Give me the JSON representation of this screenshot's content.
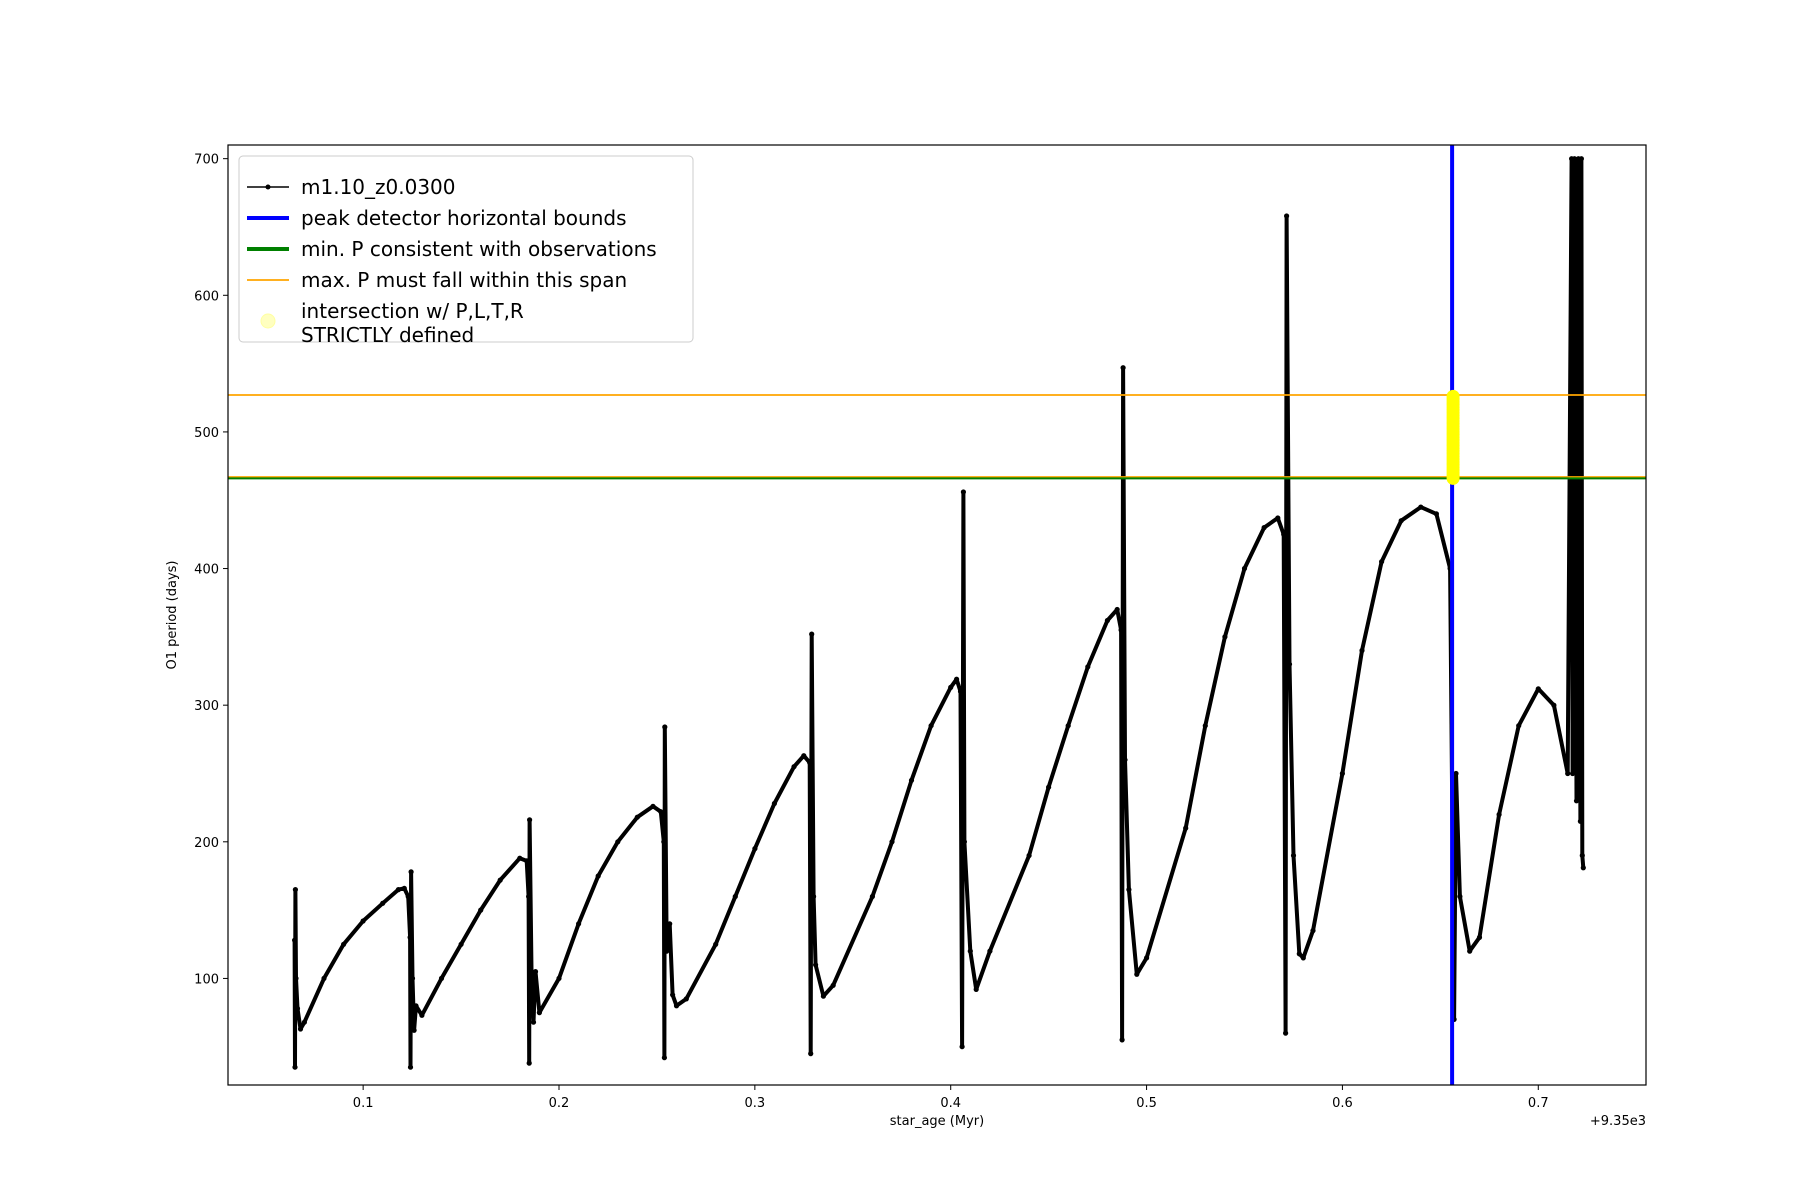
{
  "chart_data": {
    "type": "line",
    "xlabel": "star_age (Myr)",
    "ylabel": "O1 period (days)",
    "x_offset_label": "+9.35e3",
    "xlim": [
      0.031,
      0.755
    ],
    "ylim": [
      22,
      710
    ],
    "x_ticks": [
      0.1,
      0.2,
      0.3,
      0.4,
      0.5,
      0.6,
      0.7
    ],
    "x_tick_labels": [
      "0.1",
      "0.2",
      "0.3",
      "0.4",
      "0.5",
      "0.6",
      "0.7"
    ],
    "y_ticks": [
      100,
      200,
      300,
      400,
      500,
      600,
      700
    ],
    "y_tick_labels": [
      "100",
      "200",
      "300",
      "400",
      "500",
      "600",
      "700"
    ],
    "grid": false,
    "legend_position": "top-left",
    "series": [
      {
        "name": "m1.10_z0.0300",
        "color": "#000000",
        "style": "line-with-dot-markers",
        "points": [
          [
            0.065,
            128
          ],
          [
            0.0652,
            35
          ],
          [
            0.0654,
            165
          ],
          [
            0.0657,
            100
          ],
          [
            0.0665,
            78
          ],
          [
            0.068,
            63
          ],
          [
            0.07,
            68
          ],
          [
            0.08,
            100
          ],
          [
            0.09,
            125
          ],
          [
            0.1,
            142
          ],
          [
            0.11,
            155
          ],
          [
            0.118,
            165
          ],
          [
            0.121,
            166
          ],
          [
            0.123,
            160
          ],
          [
            0.124,
            130
          ],
          [
            0.1242,
            35
          ],
          [
            0.1245,
            178
          ],
          [
            0.1252,
            100
          ],
          [
            0.126,
            62
          ],
          [
            0.127,
            80
          ],
          [
            0.13,
            73
          ],
          [
            0.14,
            100
          ],
          [
            0.15,
            125
          ],
          [
            0.16,
            150
          ],
          [
            0.17,
            172
          ],
          [
            0.18,
            188
          ],
          [
            0.1835,
            186
          ],
          [
            0.1845,
            160
          ],
          [
            0.1848,
            38
          ],
          [
            0.185,
            216
          ],
          [
            0.186,
            100
          ],
          [
            0.187,
            68
          ],
          [
            0.188,
            105
          ],
          [
            0.19,
            75
          ],
          [
            0.2,
            100
          ],
          [
            0.21,
            140
          ],
          [
            0.22,
            175
          ],
          [
            0.23,
            200
          ],
          [
            0.24,
            218
          ],
          [
            0.248,
            226
          ],
          [
            0.252,
            222
          ],
          [
            0.2535,
            200
          ],
          [
            0.2538,
            42
          ],
          [
            0.254,
            284
          ],
          [
            0.255,
            120
          ],
          [
            0.2565,
            140
          ],
          [
            0.258,
            88
          ],
          [
            0.26,
            80
          ],
          [
            0.265,
            85
          ],
          [
            0.28,
            125
          ],
          [
            0.29,
            160
          ],
          [
            0.3,
            195
          ],
          [
            0.31,
            228
          ],
          [
            0.32,
            255
          ],
          [
            0.325,
            263
          ],
          [
            0.328,
            258
          ],
          [
            0.3285,
            45
          ],
          [
            0.329,
            352
          ],
          [
            0.33,
            160
          ],
          [
            0.331,
            110
          ],
          [
            0.335,
            87
          ],
          [
            0.34,
            95
          ],
          [
            0.36,
            160
          ],
          [
            0.37,
            200
          ],
          [
            0.38,
            245
          ],
          [
            0.39,
            285
          ],
          [
            0.4,
            313
          ],
          [
            0.403,
            319
          ],
          [
            0.405,
            310
          ],
          [
            0.4058,
            50
          ],
          [
            0.4065,
            456
          ],
          [
            0.407,
            200
          ],
          [
            0.41,
            120
          ],
          [
            0.413,
            92
          ],
          [
            0.42,
            120
          ],
          [
            0.44,
            190
          ],
          [
            0.45,
            240
          ],
          [
            0.46,
            285
          ],
          [
            0.47,
            328
          ],
          [
            0.48,
            362
          ],
          [
            0.485,
            370
          ],
          [
            0.487,
            355
          ],
          [
            0.4875,
            55
          ],
          [
            0.488,
            547
          ],
          [
            0.489,
            260
          ],
          [
            0.491,
            165
          ],
          [
            0.495,
            103
          ],
          [
            0.5,
            115
          ],
          [
            0.52,
            210
          ],
          [
            0.53,
            285
          ],
          [
            0.54,
            350
          ],
          [
            0.55,
            400
          ],
          [
            0.56,
            430
          ],
          [
            0.567,
            437
          ],
          [
            0.57,
            425
          ],
          [
            0.571,
            60
          ],
          [
            0.5715,
            658
          ],
          [
            0.573,
            330
          ],
          [
            0.575,
            190
          ],
          [
            0.578,
            118
          ],
          [
            0.58,
            115
          ],
          [
            0.585,
            135
          ],
          [
            0.6,
            250
          ],
          [
            0.61,
            340
          ],
          [
            0.62,
            405
          ],
          [
            0.63,
            435
          ],
          [
            0.64,
            445
          ],
          [
            0.648,
            440
          ],
          [
            0.655,
            400
          ],
          [
            0.657,
            70
          ],
          [
            0.658,
            250
          ],
          [
            0.66,
            160
          ],
          [
            0.665,
            120
          ],
          [
            0.67,
            130
          ],
          [
            0.68,
            220
          ],
          [
            0.69,
            285
          ],
          [
            0.7,
            312
          ],
          [
            0.708,
            300
          ],
          [
            0.715,
            250
          ],
          [
            0.717,
            700
          ],
          [
            0.7175,
            250
          ],
          [
            0.7185,
            700
          ],
          [
            0.7195,
            230
          ],
          [
            0.7205,
            700
          ],
          [
            0.7215,
            215
          ],
          [
            0.722,
            700
          ],
          [
            0.7225,
            190
          ],
          [
            0.723,
            181
          ]
        ]
      },
      {
        "name": "peak detector horizontal bounds",
        "color": "#0000ff",
        "style": "vertical-line",
        "x": 0.656
      },
      {
        "name": "min. P consistent with observations",
        "color": "#008000",
        "style": "horizontal-line",
        "y": 466
      },
      {
        "name": "max. P must fall within this span",
        "color": "#ffa500",
        "style": "horizontal-lines",
        "y": [
          527,
          467
        ]
      },
      {
        "name": "intersection w/ P,L,T,R\nSTRICTLY defined",
        "color": "#ffff00",
        "style": "scatter",
        "x": 0.6565,
        "y_range": [
          466,
          527
        ]
      }
    ]
  }
}
